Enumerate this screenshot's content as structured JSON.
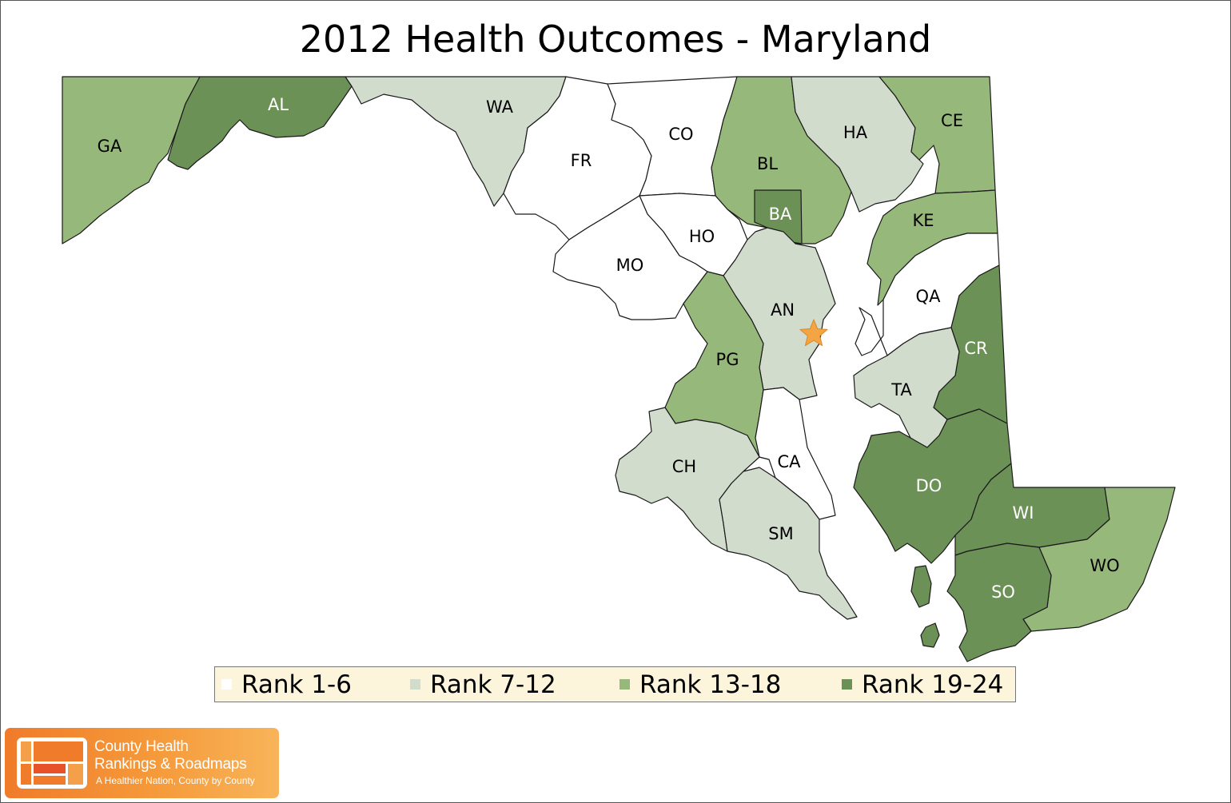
{
  "title": "2012 Health Outcomes - Maryland",
  "colors": {
    "rank_1_6": "#ffffff",
    "rank_7_12": "#d2dccd",
    "rank_13_18": "#96b97b",
    "rank_19_24": "#6c9156",
    "capital_star": "#f5a443",
    "legend_bg": "#fcf5dc",
    "logo_orange": "#f07b2a"
  },
  "legend": [
    {
      "label": "Rank 1-6",
      "color": "#ffffff"
    },
    {
      "label": "Rank 7-12",
      "color": "#d2dccd"
    },
    {
      "label": "Rank 13-18",
      "color": "#96b97b"
    },
    {
      "label": "Rank 19-24",
      "color": "#6c9156"
    }
  ],
  "counties": [
    {
      "id": "GA",
      "label": "GA",
      "rank_group": "Rank 13-18"
    },
    {
      "id": "AL",
      "label": "AL",
      "rank_group": "Rank 19-24"
    },
    {
      "id": "WA",
      "label": "WA",
      "rank_group": "Rank 7-12"
    },
    {
      "id": "FR",
      "label": "FR",
      "rank_group": "Rank 1-6"
    },
    {
      "id": "CO",
      "label": "CO",
      "rank_group": "Rank 1-6"
    },
    {
      "id": "BL",
      "label": "BL",
      "rank_group": "Rank 13-18"
    },
    {
      "id": "HA",
      "label": "HA",
      "rank_group": "Rank 7-12"
    },
    {
      "id": "CE",
      "label": "CE",
      "rank_group": "Rank 13-18"
    },
    {
      "id": "BA",
      "label": "BA",
      "rank_group": "Rank 19-24"
    },
    {
      "id": "HO",
      "label": "HO",
      "rank_group": "Rank 1-6"
    },
    {
      "id": "KE",
      "label": "KE",
      "rank_group": "Rank 13-18"
    },
    {
      "id": "MO",
      "label": "MO",
      "rank_group": "Rank 1-6"
    },
    {
      "id": "AN",
      "label": "AN",
      "rank_group": "Rank 7-12"
    },
    {
      "id": "QA",
      "label": "QA",
      "rank_group": "Rank 1-6"
    },
    {
      "id": "PG",
      "label": "PG",
      "rank_group": "Rank 13-18"
    },
    {
      "id": "CR",
      "label": "CR",
      "rank_group": "Rank 19-24"
    },
    {
      "id": "TA",
      "label": "TA",
      "rank_group": "Rank 7-12"
    },
    {
      "id": "CA",
      "label": "CA",
      "rank_group": "Rank 1-6"
    },
    {
      "id": "CH",
      "label": "CH",
      "rank_group": "Rank 7-12"
    },
    {
      "id": "DO",
      "label": "DO",
      "rank_group": "Rank 19-24"
    },
    {
      "id": "WI",
      "label": "WI",
      "rank_group": "Rank 19-24"
    },
    {
      "id": "SM",
      "label": "SM",
      "rank_group": "Rank 7-12"
    },
    {
      "id": "WO",
      "label": "WO",
      "rank_group": "Rank 13-18"
    },
    {
      "id": "SO",
      "label": "SO",
      "rank_group": "Rank 19-24"
    }
  ],
  "capital_marker": "star-icon",
  "logo": {
    "line1": "County Health",
    "line2": "Rankings & Roadmaps",
    "tagline": "A Healthier Nation, County by County"
  }
}
